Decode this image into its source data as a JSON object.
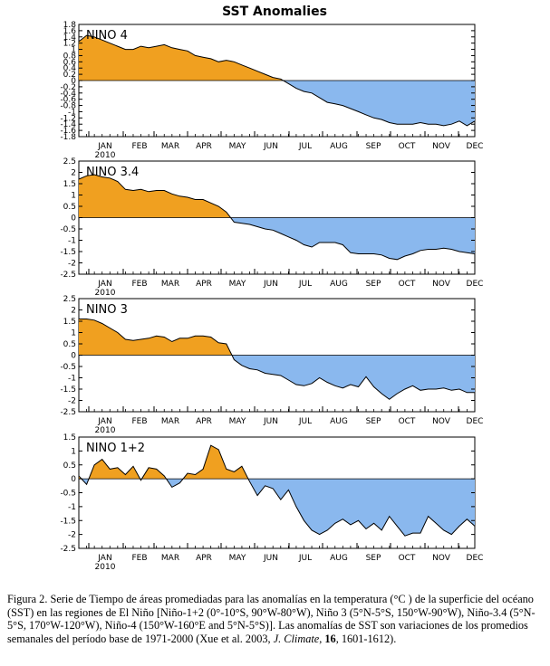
{
  "title": "SST Anomalies",
  "colors": {
    "positive": "#f0a020",
    "negative": "#8ab8ee",
    "line": "#000000"
  },
  "months": [
    "JAN",
    "FEB",
    "MAR",
    "APR",
    "MAY",
    "JUN",
    "JUL",
    "AUG",
    "SEP",
    "OCT",
    "NOV",
    "DEC"
  ],
  "year_label": "2010",
  "chart_data": [
    {
      "type": "area",
      "title": "NINO 4",
      "x_unit": "week",
      "xlim": [
        1,
        52
      ],
      "ylim": [
        -1.8,
        1.8
      ],
      "y_ticks": [
        1.8,
        1.6,
        1.4,
        1.2,
        1,
        0.8,
        0.6,
        0.4,
        0.2,
        0,
        -0.2,
        -0.4,
        -0.6,
        -0.8,
        -1,
        -1.2,
        -1.4,
        -1.6,
        -1.8
      ],
      "y_tick_labels": [
        "1.8",
        "1.6",
        "1.4",
        "1.2",
        "1",
        "0.8",
        "0.6",
        "0.4",
        "0.2",
        "0",
        "-0.2",
        "-0.4",
        "-0.6",
        "-0.8",
        "-1",
        "-1.2",
        "-1.4",
        "-1.6",
        "-1.8"
      ],
      "values": [
        1.25,
        1.45,
        1.4,
        1.3,
        1.2,
        1.1,
        1.0,
        1.0,
        1.1,
        1.05,
        1.1,
        1.15,
        1.05,
        1.0,
        0.95,
        0.8,
        0.75,
        0.7,
        0.6,
        0.65,
        0.6,
        0.5,
        0.4,
        0.3,
        0.2,
        0.1,
        0.05,
        -0.1,
        -0.25,
        -0.35,
        -0.4,
        -0.55,
        -0.7,
        -0.75,
        -0.8,
        -0.9,
        -1.0,
        -1.1,
        -1.2,
        -1.25,
        -1.35,
        -1.4,
        -1.4,
        -1.4,
        -1.35,
        -1.4,
        -1.4,
        -1.45,
        -1.4,
        -1.3,
        -1.45,
        -1.3
      ]
    },
    {
      "type": "area",
      "title": "NINO 3.4",
      "x_unit": "week",
      "xlim": [
        1,
        52
      ],
      "ylim": [
        -2.5,
        2.5
      ],
      "y_ticks": [
        2.5,
        2,
        1.5,
        1,
        0.5,
        0,
        -0.5,
        -1,
        -1.5,
        -2,
        -2.5
      ],
      "y_tick_labels": [
        "2.5",
        "2",
        "1.5",
        "1",
        "0.5",
        "0",
        "-0.5",
        "-1",
        "-1.5",
        "-2",
        "-2.5"
      ],
      "values": [
        1.7,
        1.85,
        1.9,
        1.8,
        1.75,
        1.6,
        1.25,
        1.2,
        1.25,
        1.15,
        1.2,
        1.2,
        1.05,
        0.95,
        0.9,
        0.8,
        0.8,
        0.65,
        0.5,
        0.25,
        -0.2,
        -0.25,
        -0.3,
        -0.4,
        -0.5,
        -0.55,
        -0.7,
        -0.85,
        -1.0,
        -1.2,
        -1.3,
        -1.1,
        -1.1,
        -1.1,
        -1.2,
        -1.55,
        -1.6,
        -1.6,
        -1.6,
        -1.65,
        -1.8,
        -1.85,
        -1.7,
        -1.6,
        -1.45,
        -1.4,
        -1.4,
        -1.35,
        -1.4,
        -1.5,
        -1.55,
        -1.6
      ]
    },
    {
      "type": "area",
      "title": "NINO 3",
      "x_unit": "week",
      "xlim": [
        1,
        52
      ],
      "ylim": [
        -2.5,
        2.5
      ],
      "y_ticks": [
        2.5,
        2,
        1.5,
        1,
        0.5,
        0,
        -0.5,
        -1,
        -1.5,
        -2,
        -2.5
      ],
      "y_tick_labels": [
        "2.5",
        "2",
        "1.5",
        "1",
        "0.5",
        "0",
        "-0.5",
        "-1",
        "-1.5",
        "-2",
        "-2.5"
      ],
      "values": [
        1.6,
        1.6,
        1.55,
        1.4,
        1.2,
        1.0,
        0.7,
        0.65,
        0.7,
        0.75,
        0.85,
        0.8,
        0.6,
        0.75,
        0.75,
        0.85,
        0.85,
        0.8,
        0.55,
        0.5,
        -0.2,
        -0.45,
        -0.6,
        -0.65,
        -0.8,
        -0.85,
        -0.9,
        -1.1,
        -1.3,
        -1.35,
        -1.25,
        -1.0,
        -1.2,
        -1.35,
        -1.45,
        -1.3,
        -1.4,
        -0.95,
        -1.4,
        -1.7,
        -1.95,
        -1.7,
        -1.5,
        -1.35,
        -1.55,
        -1.5,
        -1.5,
        -1.45,
        -1.55,
        -1.5,
        -1.65,
        -1.65
      ]
    },
    {
      "type": "area",
      "title": "NINO 1+2",
      "x_unit": "week",
      "xlim": [
        1,
        52
      ],
      "ylim": [
        -2.5,
        1.5
      ],
      "y_ticks": [
        1.5,
        1,
        0.5,
        0,
        -0.5,
        -1,
        -1.5,
        -2,
        -2.5
      ],
      "y_tick_labels": [
        "1.5",
        "1",
        "0.5",
        "0",
        "-0.5",
        "-1",
        "-1.5",
        "-2",
        "-2.5"
      ],
      "values": [
        0.1,
        -0.2,
        0.5,
        0.7,
        0.35,
        0.4,
        0.15,
        0.45,
        -0.05,
        0.4,
        0.35,
        0.1,
        -0.3,
        -0.15,
        0.2,
        0.15,
        0.35,
        1.2,
        1.05,
        0.35,
        0.25,
        0.45,
        -0.1,
        -0.6,
        -0.25,
        -0.35,
        -0.75,
        -0.4,
        -1.0,
        -1.5,
        -1.85,
        -2.0,
        -1.85,
        -1.6,
        -1.45,
        -1.65,
        -1.5,
        -1.8,
        -1.6,
        -1.85,
        -1.35,
        -1.7,
        -2.05,
        -1.95,
        -1.95,
        -1.35,
        -1.6,
        -1.85,
        -2.0,
        -1.7,
        -1.45,
        -1.7
      ]
    }
  ],
  "caption": {
    "main": "Figura 2. Serie de Tiempo de áreas promediadas para las anomalías en la temperatura (°C ) de la superficie del océano (SST) en las regiones de El Niño [Niño-1+2 (0°-10°S, 90°W-80°W), Niño 3 (5°N-5°S, 150°W-90°W), Niño-3.4 (5°N-5°S, 170°W-120°W), Niño-4 (150°W-160°E and 5°N-5°S)]. Las anomalías de SST son variaciones de los promedios semanales del período base de 1971-2000 (Xue et al. 2003, ",
    "journal": "J. Climate",
    "sep": ", ",
    "volume": "16",
    "pages": ", 1601-1612)."
  }
}
